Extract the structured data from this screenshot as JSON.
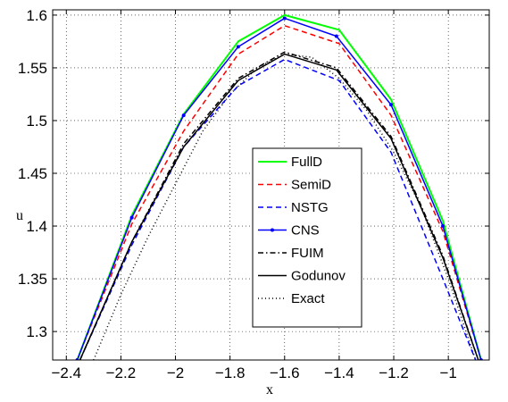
{
  "chart_data": {
    "type": "line",
    "xlabel": "x",
    "ylabel": "u",
    "xlim": [
      -2.45,
      -0.85
    ],
    "ylim": [
      1.273,
      1.605
    ],
    "xticks": [
      -2.4,
      -2.2,
      -2,
      -1.8,
      -1.6,
      -1.4,
      -1.2,
      -1
    ],
    "xtick_labels": [
      "−2.4",
      "−2.2",
      "−2",
      "−1.8",
      "−1.6",
      "−1.4",
      "−1.2",
      "−1"
    ],
    "yticks": [
      1.3,
      1.35,
      1.4,
      1.45,
      1.5,
      1.55,
      1.6
    ],
    "ytick_labels": [
      "1.3",
      "1.35",
      "1.4",
      "1.45",
      "1.5",
      "1.55",
      "1.6"
    ],
    "grid": true,
    "legend_position": "center-right",
    "series": [
      {
        "name": "FullD",
        "color": "#00ff00",
        "dash": "solid",
        "marker": "none",
        "x": [
          -2.36,
          -2.16,
          -1.97,
          -1.77,
          -1.6,
          -1.4,
          -1.21,
          -1.02,
          -0.88
        ],
        "y": [
          1.273,
          1.41,
          1.506,
          1.575,
          1.6,
          1.586,
          1.52,
          1.405,
          1.273
        ]
      },
      {
        "name": "SemiD",
        "color": "#ff0000",
        "dash": "dashed",
        "marker": "none",
        "x": [
          -2.36,
          -2.16,
          -1.97,
          -1.77,
          -1.6,
          -1.4,
          -1.21,
          -1.02,
          -0.88
        ],
        "y": [
          1.273,
          1.402,
          1.49,
          1.563,
          1.59,
          1.573,
          1.505,
          1.395,
          1.273
        ]
      },
      {
        "name": "NSTG",
        "color": "#0000ff",
        "dash": "dashed",
        "marker": "none",
        "x": [
          -2.35,
          -2.16,
          -1.97,
          -1.77,
          -1.6,
          -1.4,
          -1.21,
          -1.02,
          -0.9
        ],
        "y": [
          1.273,
          1.382,
          1.475,
          1.533,
          1.558,
          1.538,
          1.47,
          1.35,
          1.273
        ]
      },
      {
        "name": "CNS",
        "color": "#0000ff",
        "dash": "solid",
        "marker": "dot",
        "x": [
          -2.36,
          -2.16,
          -1.97,
          -1.77,
          -1.6,
          -1.41,
          -1.21,
          -1.02,
          -0.88
        ],
        "y": [
          1.273,
          1.408,
          1.505,
          1.57,
          1.597,
          1.58,
          1.515,
          1.4,
          1.273
        ]
      },
      {
        "name": "FUIM",
        "color": "#000000",
        "dash": "dashdot",
        "marker": "none",
        "x": [
          -2.35,
          -2.16,
          -1.97,
          -1.77,
          -1.6,
          -1.41,
          -1.21,
          -1.02,
          -0.89
        ],
        "y": [
          1.273,
          1.385,
          1.478,
          1.54,
          1.565,
          1.55,
          1.485,
          1.372,
          1.273
        ]
      },
      {
        "name": "Godunov",
        "color": "#000000",
        "dash": "solid",
        "marker": "none",
        "x": [
          -2.35,
          -2.16,
          -1.97,
          -1.77,
          -1.6,
          -1.41,
          -1.21,
          -1.02,
          -0.89
        ],
        "y": [
          1.273,
          1.385,
          1.475,
          1.538,
          1.563,
          1.548,
          1.483,
          1.37,
          1.273
        ]
      },
      {
        "name": "Exact",
        "color": "#000000",
        "dash": "dotted",
        "marker": "none",
        "x": [
          -2.3,
          -2.2,
          -2.1,
          -2.0,
          -1.9,
          -1.8,
          -1.7,
          -1.6,
          -1.5,
          -1.4,
          -1.3,
          -1.2,
          -1.1,
          -1.0,
          -0.9
        ],
        "y": [
          1.273,
          1.335,
          1.39,
          1.44,
          1.49,
          1.525,
          1.55,
          1.563,
          1.56,
          1.54,
          1.51,
          1.47,
          1.418,
          1.35,
          1.273
        ]
      }
    ]
  }
}
